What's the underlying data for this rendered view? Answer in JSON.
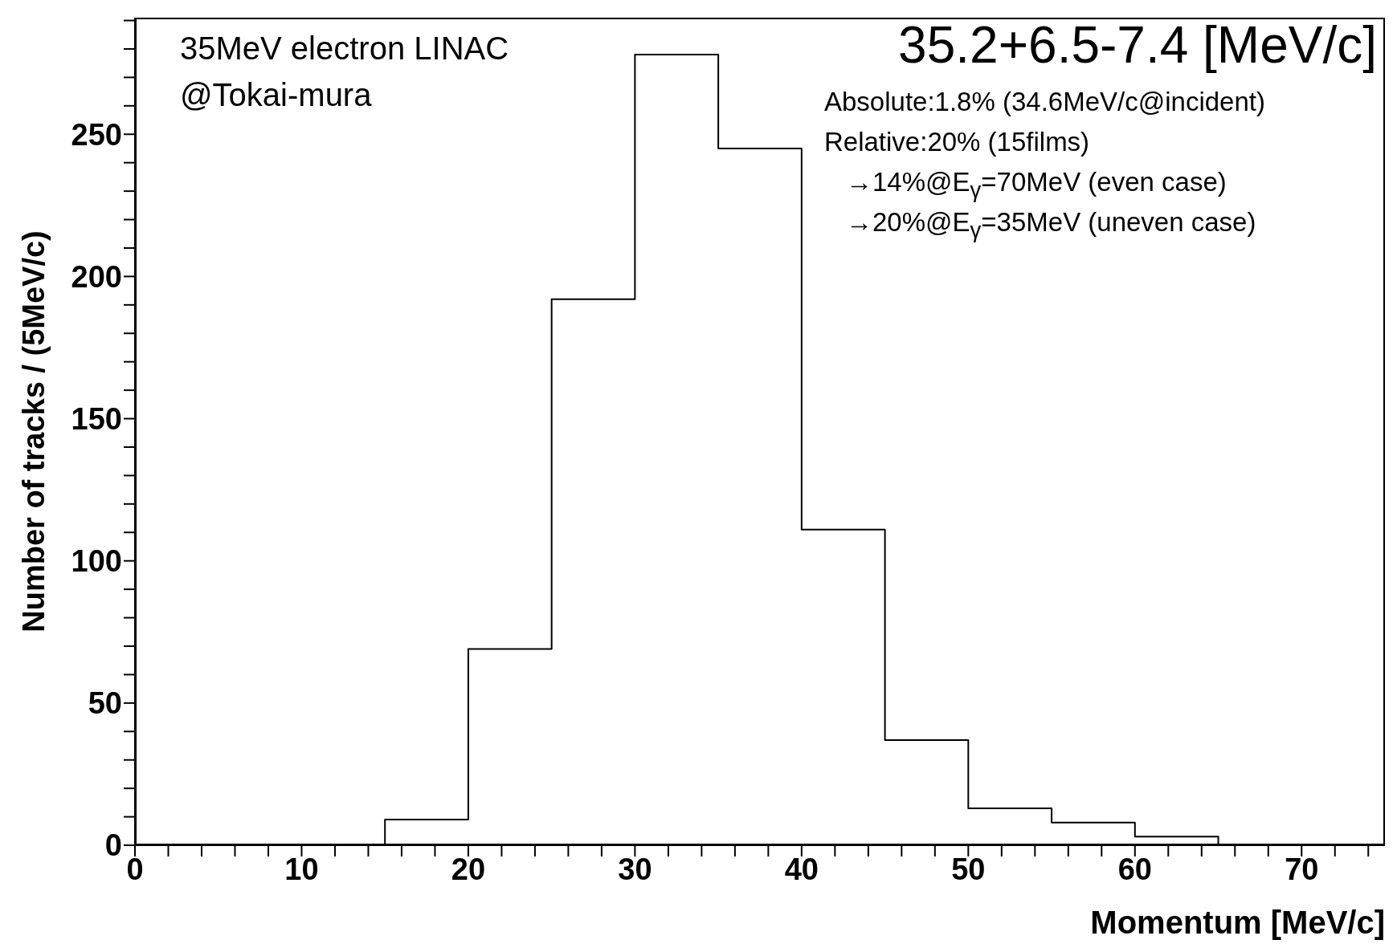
{
  "chart_data": {
    "type": "histogram",
    "title": "35.2+6.5-7.4 [MeV/c]",
    "xlabel": "Momentum [MeV/c]",
    "ylabel": "Number of tracks / (5MeV/c)",
    "bins": [
      0,
      5,
      10,
      15,
      20,
      25,
      30,
      35,
      40,
      45,
      50,
      55,
      60,
      65,
      70,
      75
    ],
    "values": [
      0,
      0,
      0,
      9,
      69,
      192,
      278,
      245,
      111,
      37,
      13,
      8,
      3,
      0,
      0
    ],
    "color": "#000000",
    "xlim": [
      0,
      75
    ],
    "ylim": [
      0,
      291
    ],
    "xticks": [
      0,
      {
        "value": 2,
        "label": null
      },
      {
        "value": 4,
        "label": null
      },
      {
        "value": 6,
        "label": null
      },
      {
        "value": 8,
        "label": null
      },
      10,
      {
        "value": 12,
        "label": null
      },
      {
        "value": 14,
        "label": null
      },
      {
        "value": 16,
        "label": null
      },
      {
        "value": 18,
        "label": null
      },
      20,
      {
        "value": 22,
        "label": null
      },
      {
        "value": 24,
        "label": null
      },
      {
        "value": 26,
        "label": null
      },
      {
        "value": 28,
        "label": null
      },
      30,
      {
        "value": 32,
        "label": null
      },
      {
        "value": 34,
        "label": null
      },
      {
        "value": 36,
        "label": null
      },
      {
        "value": 38,
        "label": null
      },
      40,
      {
        "value": 42,
        "label": null
      },
      {
        "value": 44,
        "label": null
      },
      {
        "value": 46,
        "label": null
      },
      {
        "value": 48,
        "label": null
      },
      50,
      {
        "value": 52,
        "label": null
      },
      {
        "value": 54,
        "label": null
      },
      {
        "value": 56,
        "label": null
      },
      {
        "value": 58,
        "label": null
      },
      60,
      {
        "value": 62,
        "label": null
      },
      {
        "value": 64,
        "label": null
      },
      {
        "value": 66,
        "label": null
      },
      {
        "value": 68,
        "label": null
      },
      70,
      {
        "value": 72,
        "label": null
      },
      {
        "value": 74,
        "label": null
      }
    ],
    "yticks": [
      0,
      {
        "value": 10,
        "label": null
      },
      {
        "value": 20,
        "label": null
      },
      {
        "value": 30,
        "label": null
      },
      {
        "value": 40,
        "label": null
      },
      50,
      {
        "value": 60,
        "label": null
      },
      {
        "value": 70,
        "label": null
      },
      {
        "value": 80,
        "label": null
      },
      {
        "value": 90,
        "label": null
      },
      100,
      {
        "value": 110,
        "label": null
      },
      {
        "value": 120,
        "label": null
      },
      {
        "value": 130,
        "label": null
      },
      {
        "value": 140,
        "label": null
      },
      150,
      {
        "value": 160,
        "label": null
      },
      {
        "value": 170,
        "label": null
      },
      {
        "value": 180,
        "label": null
      },
      {
        "value": 190,
        "label": null
      },
      200,
      {
        "value": 210,
        "label": null
      },
      {
        "value": 220,
        "label": null
      },
      {
        "value": 230,
        "label": null
      },
      {
        "value": 240,
        "label": null
      },
      250,
      {
        "value": 260,
        "label": null
      },
      {
        "value": 270,
        "label": null
      },
      {
        "value": 280,
        "label": null
      },
      {
        "value": 290,
        "label": null
      }
    ],
    "annotations": [
      "35MeV electron LINAC",
      "@Tokai-mura",
      "Absolute:1.8% (34.6MeV/c@incident)",
      "Relative:20% (15films)",
      "→14%@E$_{γ}$=70MeV (even case)",
      "→20%@E$_{γ}$=35MeV (uneven case)"
    ]
  }
}
